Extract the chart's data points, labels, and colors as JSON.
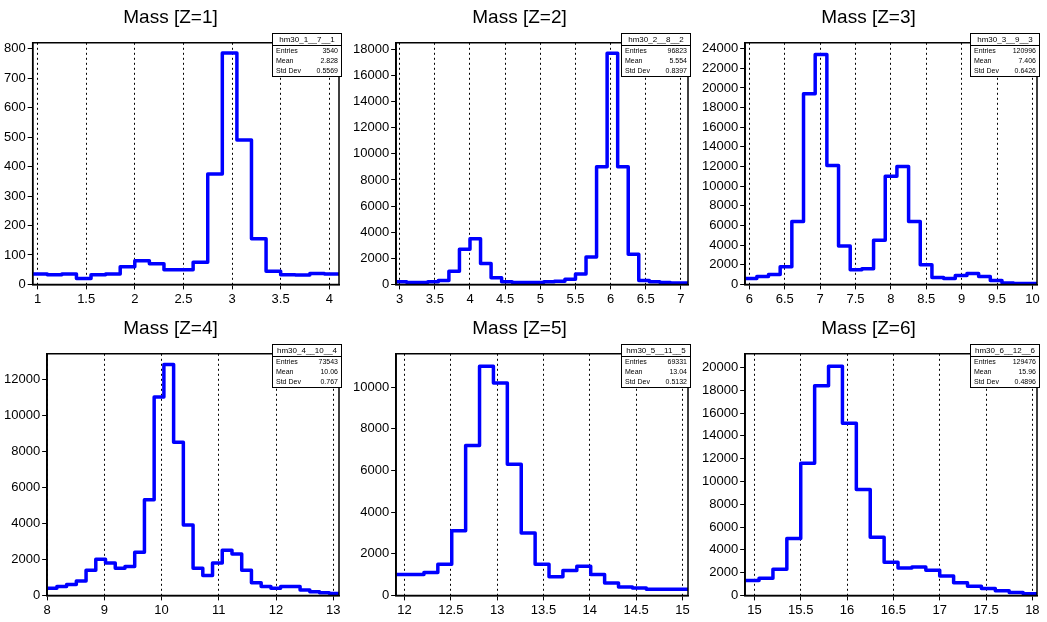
{
  "chart_data": [
    {
      "type": "histogram",
      "title": "Mass [Z=1]",
      "color": "#0000ff",
      "grid": "x",
      "legend": false,
      "annotations": [
        "hm30_1__7__1",
        "Entries",
        "3540",
        "Mean",
        "2.828",
        "Std Dev",
        "0.5569"
      ],
      "bins": [
        0.95,
        1.1,
        1.25,
        1.4,
        1.55,
        1.7,
        1.85,
        2.0,
        2.15,
        2.3,
        2.45,
        2.6,
        2.75,
        2.9,
        3.05,
        3.2,
        3.35,
        3.5,
        3.65,
        3.8,
        3.95,
        4.1
      ],
      "values": [
        35,
        33,
        35,
        20,
        33,
        35,
        60,
        80,
        70,
        50,
        50,
        75,
        375,
        785,
        490,
        155,
        45,
        33,
        32,
        37,
        35
      ],
      "xlim": [
        0.95,
        4.1
      ],
      "xticks": [
        1,
        1.5,
        2,
        2.5,
        3,
        3.5,
        4
      ],
      "ylim": [
        0,
        820
      ],
      "yticks": [
        0,
        100,
        200,
        300,
        400,
        500,
        600,
        700,
        800
      ]
    },
    {
      "type": "histogram",
      "title": "Mass [Z=2]",
      "color": "#0000ff",
      "grid": "x",
      "legend": false,
      "annotations": [
        "hm30_2__8__2",
        "Entries",
        "96823",
        "Mean",
        "5.554",
        "Std Dev",
        "0.8397"
      ],
      "bins": [
        2.95,
        3.1,
        3.25,
        3.4,
        3.55,
        3.7,
        3.85,
        4.0,
        4.15,
        4.3,
        4.45,
        4.6,
        4.75,
        4.9,
        5.05,
        5.2,
        5.35,
        5.5,
        5.65,
        5.8,
        5.95,
        6.1,
        6.25,
        6.4,
        6.55,
        6.7,
        6.85,
        7.0,
        7.1
      ],
      "values": [
        200,
        150,
        150,
        200,
        300,
        1000,
        2700,
        3500,
        1600,
        500,
        200,
        150,
        150,
        150,
        200,
        250,
        400,
        800,
        2100,
        9000,
        17700,
        9000,
        2300,
        300,
        200,
        150,
        100,
        100
      ],
      "xlim": [
        2.95,
        7.1
      ],
      "xticks": [
        3,
        3.5,
        4,
        4.5,
        5,
        5.5,
        6,
        6.5,
        7
      ],
      "ylim": [
        0,
        18500
      ],
      "yticks": [
        0,
        2000,
        4000,
        6000,
        8000,
        10000,
        12000,
        14000,
        16000,
        18000
      ]
    },
    {
      "type": "histogram",
      "title": "Mass [Z=3]",
      "color": "#0000ff",
      "grid": "x",
      "legend": false,
      "annotations": [
        "hm30_3__9__3",
        "Entries",
        "120996",
        "Mean",
        "7.406",
        "Std Dev",
        "0.6426"
      ],
      "bins": [
        5.94,
        6.105,
        6.27,
        6.435,
        6.6,
        6.765,
        6.93,
        7.095,
        7.26,
        7.425,
        7.59,
        7.755,
        7.92,
        8.085,
        8.25,
        8.415,
        8.58,
        8.745,
        8.91,
        9.075,
        9.24,
        9.405,
        9.57,
        9.735,
        9.9,
        10.065
      ],
      "values": [
        600,
        800,
        1000,
        1800,
        6400,
        19400,
        23400,
        12100,
        3900,
        1500,
        1600,
        4500,
        11000,
        12000,
        6400,
        2000,
        700,
        600,
        900,
        1100,
        800,
        400,
        150,
        100,
        100
      ],
      "xlim": [
        5.94,
        10.065
      ],
      "xticks": [
        6,
        6.5,
        7,
        7.5,
        8,
        8.5,
        9,
        9.5,
        10
      ],
      "ylim": [
        0,
        24600
      ],
      "yticks": [
        0,
        2000,
        4000,
        6000,
        8000,
        10000,
        12000,
        14000,
        16000,
        18000,
        20000,
        22000,
        24000
      ]
    },
    {
      "type": "histogram",
      "title": "Mass [Z=4]",
      "color": "#0000ff",
      "grid": "x",
      "legend": false,
      "annotations": [
        "hm30_4__10__4",
        "Entries",
        "73543",
        "Mean",
        "10.06",
        "Std Dev",
        "0.767"
      ],
      "bins": [
        8.0,
        8.17,
        8.34,
        8.51,
        8.68,
        8.85,
        9.02,
        9.19,
        9.36,
        9.53,
        9.7,
        9.87,
        10.04,
        10.21,
        10.38,
        10.55,
        10.72,
        10.89,
        11.06,
        11.23,
        11.4,
        11.57,
        11.74,
        11.91,
        12.08,
        12.25,
        12.42,
        12.59,
        12.76,
        12.93,
        13.1
      ],
      "values": [
        400,
        500,
        600,
        800,
        1400,
        2000,
        1800,
        1500,
        1600,
        2400,
        5300,
        11000,
        12800,
        8500,
        3900,
        1500,
        1100,
        1800,
        2500,
        2300,
        1400,
        700,
        500,
        400,
        500,
        500,
        300,
        200,
        150,
        100
      ],
      "xlim": [
        8.0,
        13.1
      ],
      "xticks": [
        8,
        9,
        10,
        11,
        12,
        13
      ],
      "ylim": [
        0,
        13400
      ],
      "yticks": [
        0,
        2000,
        4000,
        6000,
        8000,
        10000,
        12000
      ]
    },
    {
      "type": "histogram",
      "title": "Mass [Z=5]",
      "color": "#0000ff",
      "grid": "x",
      "legend": false,
      "annotations": [
        "hm30_5__11__5",
        "Entries",
        "69331",
        "Mean",
        "13.04",
        "Std Dev",
        "0.5132"
      ],
      "bins": [
        11.91,
        12.06,
        12.21,
        12.36,
        12.51,
        12.66,
        12.81,
        12.96,
        13.11,
        13.26,
        13.41,
        13.56,
        13.71,
        13.86,
        14.01,
        14.16,
        14.31,
        14.46,
        14.61,
        14.76,
        14.91,
        15.06
      ],
      "values": [
        1000,
        1000,
        1100,
        1500,
        3100,
        7200,
        11000,
        10200,
        6300,
        3000,
        1500,
        900,
        1200,
        1400,
        1000,
        600,
        400,
        350,
        300,
        300,
        300
      ],
      "xlim": [
        11.91,
        15.06
      ],
      "xticks": [
        12,
        12.5,
        13,
        13.5,
        14,
        14.5,
        15
      ],
      "ylim": [
        0,
        11600
      ],
      "yticks": [
        0,
        2000,
        4000,
        6000,
        8000,
        10000
      ]
    },
    {
      "type": "histogram",
      "title": "Mass [Z=6]",
      "color": "#0000ff",
      "grid": "x",
      "legend": false,
      "annotations": [
        "hm30_6__12__6",
        "Entries",
        "129476",
        "Mean",
        "15.96",
        "Std Dev",
        "0.4896"
      ],
      "bins": [
        14.9,
        15.05,
        15.2,
        15.35,
        15.5,
        15.65,
        15.8,
        15.95,
        16.1,
        16.25,
        16.4,
        16.55,
        16.7,
        16.85,
        17.0,
        17.15,
        17.3,
        17.45,
        17.6,
        17.75,
        17.9,
        18.05
      ],
      "values": [
        1300,
        1500,
        2300,
        5000,
        11600,
        18400,
        20100,
        15100,
        9300,
        5100,
        2900,
        2400,
        2500,
        2200,
        1700,
        1100,
        800,
        600,
        400,
        250,
        150
      ],
      "xlim": [
        14.9,
        18.05
      ],
      "xticks": [
        15,
        15.5,
        16,
        16.5,
        17,
        17.5,
        18
      ],
      "ylim": [
        0,
        21200
      ],
      "yticks": [
        0,
        2000,
        4000,
        6000,
        8000,
        10000,
        12000,
        14000,
        16000,
        18000,
        20000
      ]
    }
  ]
}
